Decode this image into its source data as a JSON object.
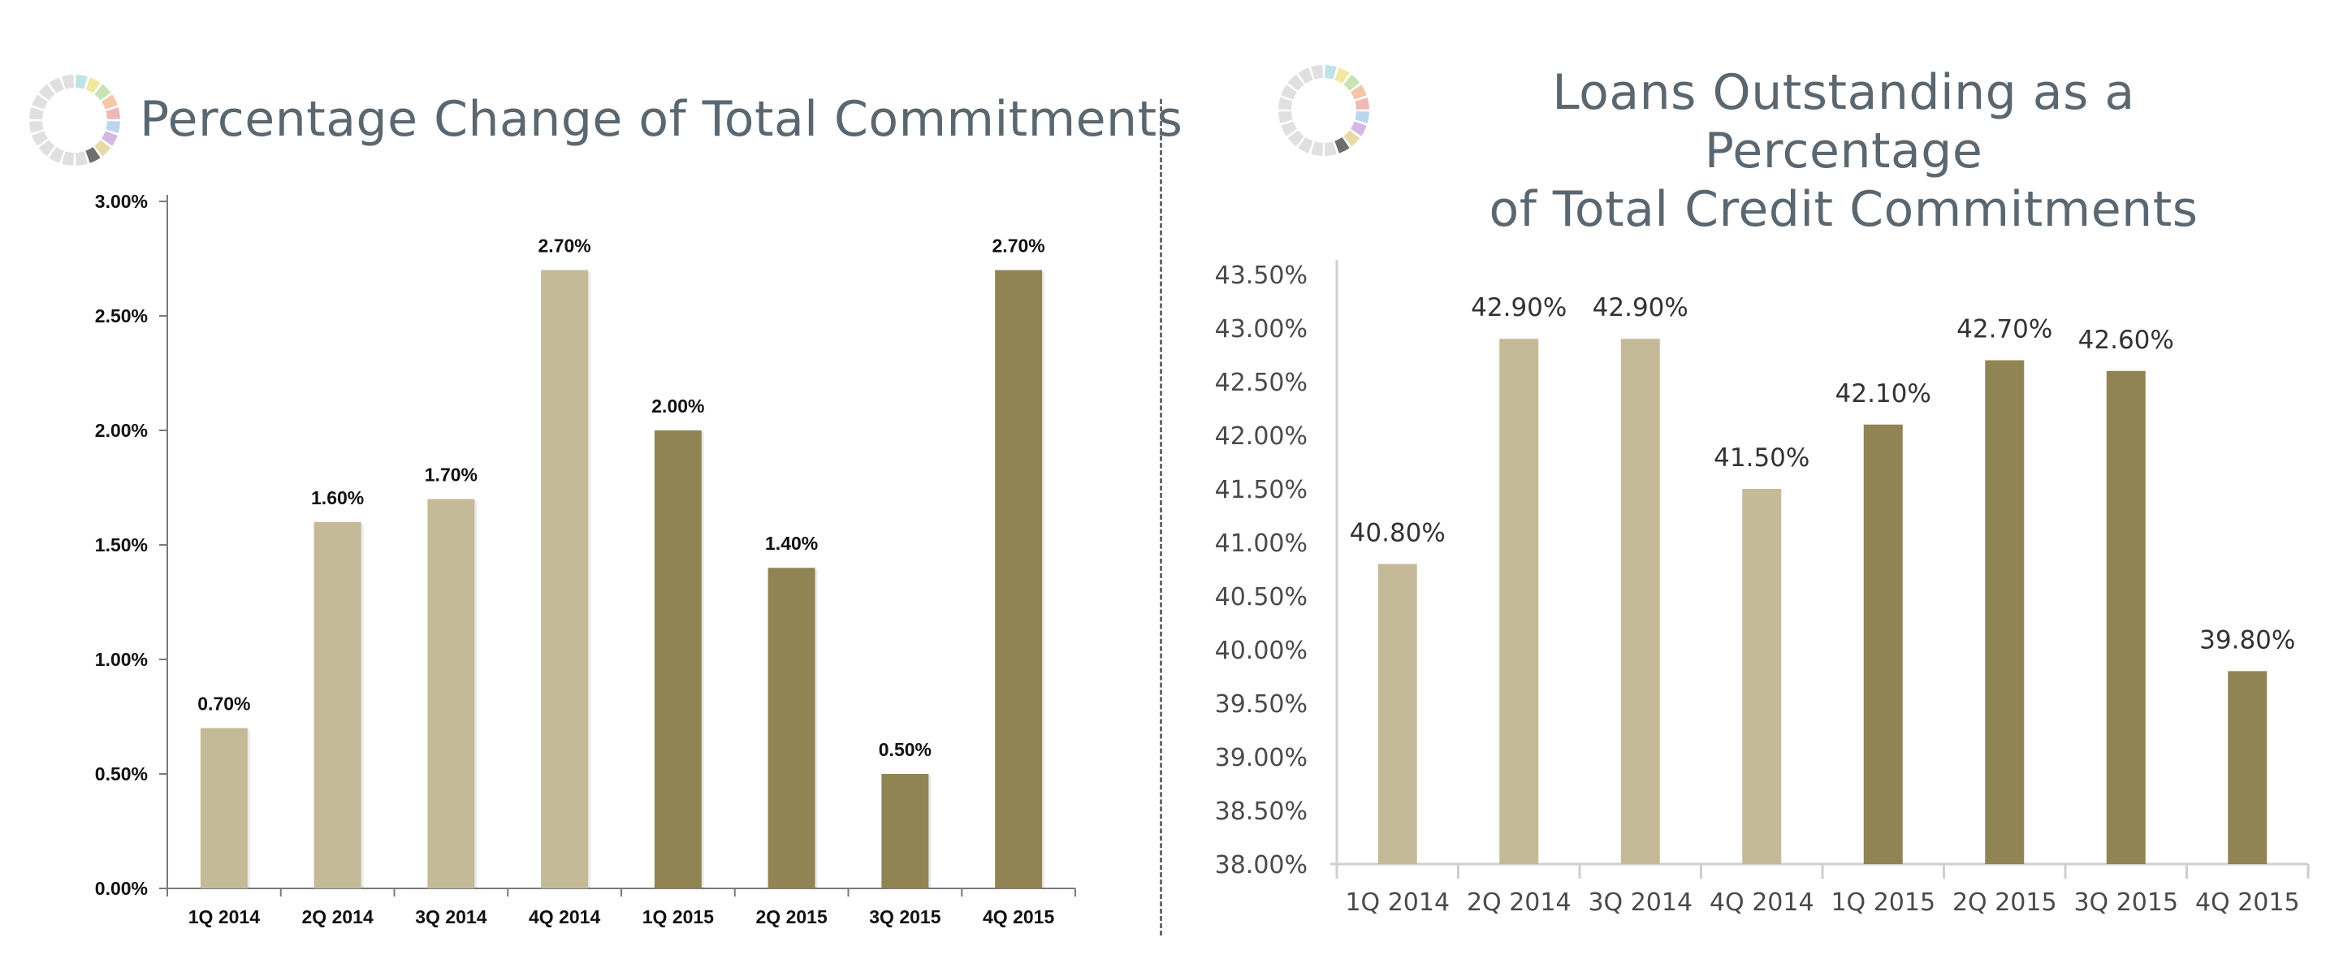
{
  "colors": {
    "light_bar": "#c4ba97",
    "dark_bar": "#918454",
    "title": "#5b6770",
    "logo_segments": [
      "#e0e0e0",
      "#e0e0e0",
      "#e0e0e0",
      "#e0e0e0",
      "#e0e0e0",
      "#e0e0e0",
      "#e0e0e0",
      "#e0e0e0",
      "#e0e0e0",
      "#e0e0e0",
      "#bfe3e6",
      "#f2e8a0",
      "#c8e3b5",
      "#f5c6a8",
      "#f1b8b8",
      "#b9d6ee",
      "#d4b8e2",
      "#e8d9a8",
      "#6e6e6e",
      "#e0e0e0"
    ]
  },
  "chart_data": [
    {
      "type": "bar",
      "title": "Percentage Change of Total Commitments",
      "categories": [
        "1Q 2014",
        "2Q 2014",
        "3Q 2014",
        "4Q 2014",
        "1Q 2015",
        "2Q 2015",
        "3Q 2015",
        "4Q 2015"
      ],
      "values": [
        0.7,
        1.6,
        1.7,
        2.7,
        2.0,
        1.4,
        0.5,
        2.7
      ],
      "data_labels": [
        "0.70%",
        "1.60%",
        "1.70%",
        "2.70%",
        "2.00%",
        "1.40%",
        "0.50%",
        "2.70%"
      ],
      "bar_color_group": [
        "light",
        "light",
        "light",
        "light",
        "dark",
        "dark",
        "dark",
        "dark"
      ],
      "ylim": [
        0,
        3
      ],
      "yticks": [
        0,
        0.5,
        1.0,
        1.5,
        2.0,
        2.5,
        3.0
      ],
      "ytick_labels": [
        "0.00%",
        "0.50%",
        "1.00%",
        "1.50%",
        "2.00%",
        "2.50%",
        "3.00%"
      ],
      "xlabel": "",
      "ylabel": "",
      "grid": false,
      "legend": "none"
    },
    {
      "type": "bar",
      "title": "Loans Outstanding as a Percentage of Total Credit Commitments",
      "title_lines": [
        "Loans Outstanding as a Percentage",
        "of Total Credit Commitments"
      ],
      "categories": [
        "1Q 2014",
        "2Q 2014",
        "3Q 2014",
        "4Q 2014",
        "1Q 2015",
        "2Q 2015",
        "3Q 2015",
        "4Q 2015"
      ],
      "values": [
        40.8,
        42.9,
        42.9,
        41.5,
        42.1,
        42.7,
        42.6,
        39.8
      ],
      "data_labels": [
        "40.80%",
        "42.90%",
        "42.90%",
        "41.50%",
        "42.10%",
        "42.70%",
        "42.60%",
        "39.80%"
      ],
      "bar_color_group": [
        "light",
        "light",
        "light",
        "light",
        "dark",
        "dark",
        "dark",
        "dark"
      ],
      "ylim": [
        38,
        43.5
      ],
      "yticks": [
        38.0,
        38.5,
        39.0,
        39.5,
        40.0,
        40.5,
        41.0,
        41.5,
        42.0,
        42.5,
        43.0,
        43.5
      ],
      "ytick_labels": [
        "38.00%",
        "38.50%",
        "39.00%",
        "39.50%",
        "40.00%",
        "40.50%",
        "41.00%",
        "41.50%",
        "42.00%",
        "42.50%",
        "43.00%",
        "43.50%"
      ],
      "xlabel": "",
      "ylabel": "",
      "grid": false,
      "legend": "none"
    }
  ]
}
